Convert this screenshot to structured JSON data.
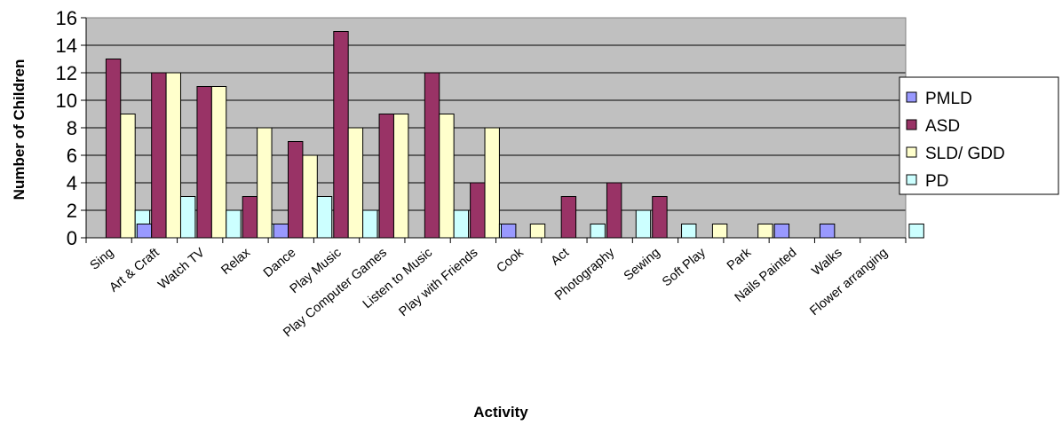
{
  "chart_data": {
    "type": "bar",
    "title": "",
    "xlabel": "Activity",
    "ylabel": "Number of Children",
    "ylim": [
      0,
      16
    ],
    "yticks": [
      0,
      2,
      4,
      6,
      8,
      10,
      12,
      14,
      16
    ],
    "grid": true,
    "legend_position": "right",
    "plot_background": "#c0c0c0",
    "categories": [
      "Sing",
      "Art & Craft",
      "Watch TV",
      "Relax",
      "Dance",
      "Play Music",
      "Play Computer Games",
      "Listen to Music",
      "Play with Friends",
      "Cook",
      "Act",
      "Photography",
      "Sewing",
      "Soft Play",
      "Park",
      "Nails Painted",
      "Walks",
      "Flower arranging"
    ],
    "series": [
      {
        "name": "PMLD",
        "color": "#9999ff",
        "values": [
          0,
          1,
          0,
          0,
          1,
          0,
          0,
          0,
          0,
          1,
          0,
          0,
          0,
          0,
          0,
          1,
          1,
          0
        ]
      },
      {
        "name": "ASD",
        "color": "#993366",
        "values": [
          13,
          12,
          11,
          3,
          7,
          15,
          9,
          12,
          4,
          0,
          3,
          4,
          3,
          0,
          0,
          0,
          0,
          0
        ]
      },
      {
        "name": "SLD/ GDD",
        "color": "#ffffcc",
        "values": [
          9,
          12,
          11,
          8,
          6,
          8,
          9,
          9,
          8,
          1,
          0,
          0,
          0,
          1,
          1,
          0,
          0,
          0
        ]
      },
      {
        "name": "PD",
        "color": "#ccffff",
        "values": [
          2,
          3,
          2,
          1,
          3,
          2,
          0,
          2,
          1,
          0,
          1,
          2,
          1,
          0,
          0,
          0,
          0,
          1
        ]
      }
    ]
  }
}
